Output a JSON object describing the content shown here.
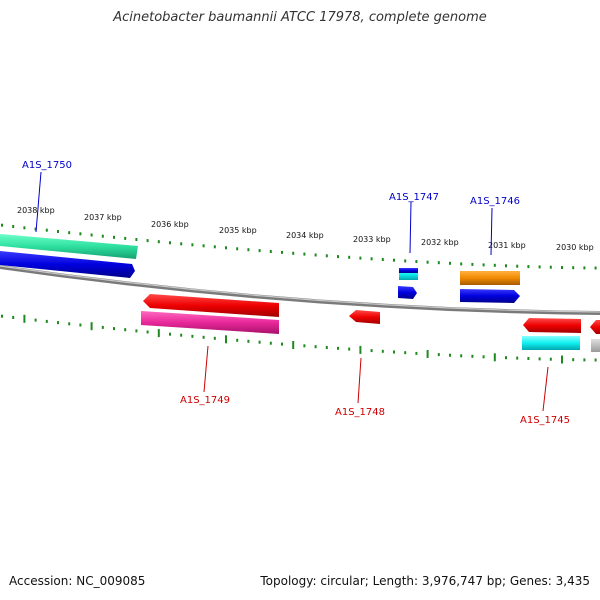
{
  "title": "Acinetobacter baumannii ATCC 17978, complete genome",
  "accession_text": "Accession: NC_009085",
  "summary_text": "Topology: circular; Length: 3,976,747 bp; Genes: 3,435",
  "colors": {
    "backbone": "#8a8a8a",
    "tick": "#1f8a1f",
    "label_top": "#0000cc",
    "label_bottom": "#cc0000"
  },
  "ruler": {
    "ticks": [
      "2038 kbp",
      "2037 kbp",
      "2036 kbp",
      "2035 kbp",
      "2034 kbp",
      "2033 kbp",
      "2032 kbp",
      "2031 kbp",
      "2030 kbp"
    ]
  },
  "genes_top": [
    {
      "label": "A1S_1750",
      "color": "#0000cc"
    },
    {
      "label": "A1S_1747",
      "color": "#0000cc"
    },
    {
      "label": "A1S_1746",
      "color": "#0000cc"
    }
  ],
  "genes_bottom": [
    {
      "label": "A1S_1749",
      "color": "#cc0000"
    },
    {
      "label": "A1S_1748",
      "color": "#cc0000"
    },
    {
      "label": "A1S_1745",
      "color": "#cc0000"
    }
  ]
}
